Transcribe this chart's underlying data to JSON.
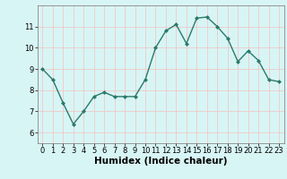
{
  "x": [
    0,
    1,
    2,
    3,
    4,
    5,
    6,
    7,
    8,
    9,
    10,
    11,
    12,
    13,
    14,
    15,
    16,
    17,
    18,
    19,
    20,
    21,
    22,
    23
  ],
  "y": [
    9.0,
    8.5,
    7.4,
    6.4,
    7.0,
    7.7,
    7.9,
    7.7,
    7.7,
    7.7,
    8.5,
    10.0,
    10.8,
    11.1,
    10.2,
    11.4,
    11.45,
    11.0,
    10.45,
    9.35,
    9.85,
    9.4,
    8.5,
    8.4
  ],
  "line_color": "#2a7a6a",
  "marker": "D",
  "markersize": 2.0,
  "linewidth": 1.0,
  "xlabel": "Humidex (Indice chaleur)",
  "ylim": [
    5.5,
    12.0
  ],
  "xlim": [
    -0.5,
    23.5
  ],
  "yticks": [
    6,
    7,
    8,
    9,
    10,
    11
  ],
  "xticks": [
    0,
    1,
    2,
    3,
    4,
    5,
    6,
    7,
    8,
    9,
    10,
    11,
    12,
    13,
    14,
    15,
    16,
    17,
    18,
    19,
    20,
    21,
    22,
    23
  ],
  "bg_color": "#d8f5f5",
  "grid_color": "#f0c8c8",
  "tick_label_fontsize": 6.0,
  "xlabel_fontsize": 7.5,
  "spine_color": "#888888"
}
